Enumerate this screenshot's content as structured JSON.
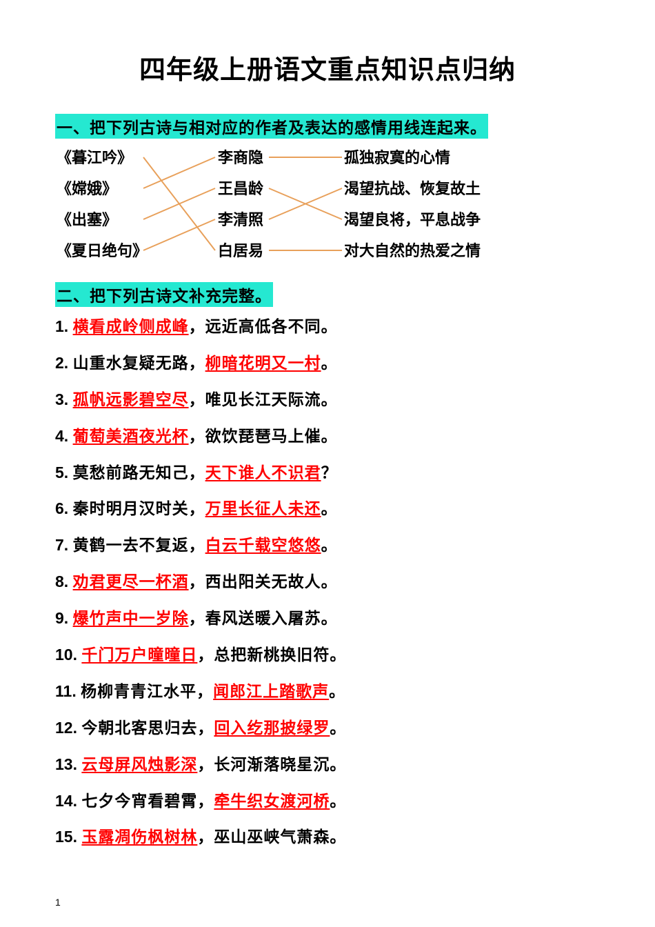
{
  "title": "四年级上册语文重点知识点归纳",
  "section1": {
    "header": "一、把下列古诗与相对应的作者及表达的感情用线连起来。",
    "poems": [
      "《暮江吟》",
      "《嫦娥》",
      "《出塞》",
      "《夏日绝句》"
    ],
    "authors": [
      "李商隐",
      "王昌龄",
      "李清照",
      "白居易"
    ],
    "feelings": [
      "孤独寂寞的心情",
      "渴望抗战、恢复故土",
      "渴望良将，平息战争",
      "对大自然的热爱之情"
    ],
    "line_color": "#e8a05a",
    "lines_left": [
      [
        0,
        3
      ],
      [
        1,
        0
      ],
      [
        2,
        1
      ],
      [
        3,
        2
      ]
    ],
    "lines_right": [
      [
        0,
        0
      ],
      [
        1,
        2
      ],
      [
        2,
        1
      ],
      [
        3,
        3
      ]
    ]
  },
  "section2": {
    "header": "二、把下列古诗文补充完整。",
    "items": [
      {
        "n": "1.",
        "a_red": true,
        "a": "横看成岭侧成峰",
        "sep": "，",
        "b_red": false,
        "b": "远近高低各不同",
        "tail": "。"
      },
      {
        "n": "2.",
        "a_red": false,
        "a": "山重水复疑无路",
        "sep": "，",
        "b_red": true,
        "b": "柳暗花明又一村",
        "tail": "。"
      },
      {
        "n": "3.",
        "a_red": true,
        "a": "孤帆远影碧空尽",
        "sep": "，",
        "b_red": false,
        "b": "唯见长江天际流",
        "tail": "。"
      },
      {
        "n": "4.",
        "a_red": true,
        "a": "葡萄美酒夜光杯",
        "sep": "，",
        "b_red": false,
        "b": "欲饮琵琶马上催",
        "tail": "。"
      },
      {
        "n": "5.",
        "a_red": false,
        "a": "莫愁前路无知己",
        "sep": "，",
        "b_red": true,
        "b": "天下谁人不识君",
        "tail": "？"
      },
      {
        "n": "6.",
        "a_red": false,
        "a": "秦时明月汉时关",
        "sep": "，",
        "b_red": true,
        "b": "万里长征人未还",
        "tail": "。"
      },
      {
        "n": "7.",
        "a_red": false,
        "a": "黄鹤一去不复返",
        "sep": "，",
        "b_red": true,
        "b": "白云千载空悠悠",
        "tail": "。"
      },
      {
        "n": "8.",
        "a_red": true,
        "a": "劝君更尽一杯酒",
        "sep": "，",
        "b_red": false,
        "b": "西出阳关无故人",
        "tail": "。"
      },
      {
        "n": "9.",
        "a_red": true,
        "a": "爆竹声中一岁除",
        "sep": "，",
        "b_red": false,
        "b": "春风送暖入屠苏",
        "tail": "。"
      },
      {
        "n": "10.",
        "a_red": true,
        "a": "千门万户曈曈日",
        "sep": "，",
        "b_red": false,
        "b": "总把新桃换旧符",
        "tail": "。"
      },
      {
        "n": "11.",
        "a_red": false,
        "a": "杨柳青青江水平",
        "sep": "，",
        "b_red": true,
        "b": "闻郎江上踏歌声",
        "tail": "。"
      },
      {
        "n": "12.",
        "a_red": false,
        "a": "今朝北客思归去",
        "sep": "，",
        "b_red": true,
        "b": "回入纥那披绿罗",
        "tail": "。"
      },
      {
        "n": "13.",
        "a_red": true,
        "a": "云母屏风烛影深",
        "sep": "，",
        "b_red": false,
        "b": "长河渐落晓星沉",
        "tail": "。"
      },
      {
        "n": "14.",
        "a_red": false,
        "a": "七夕今宵看碧霄",
        "sep": "，",
        "b_red": true,
        "b": "牵牛织女渡河桥",
        "tail": "。"
      },
      {
        "n": "15.",
        "a_red": true,
        "a": "玉露凋伤枫树林",
        "sep": "，",
        "b_red": false,
        "b": "巫山巫峡气萧森",
        "tail": "。"
      }
    ]
  },
  "pageNumber": "1",
  "colors": {
    "highlight_bg": "#25e8d1",
    "answer_text": "#ff0000",
    "text": "#000000",
    "bg": "#ffffff"
  }
}
